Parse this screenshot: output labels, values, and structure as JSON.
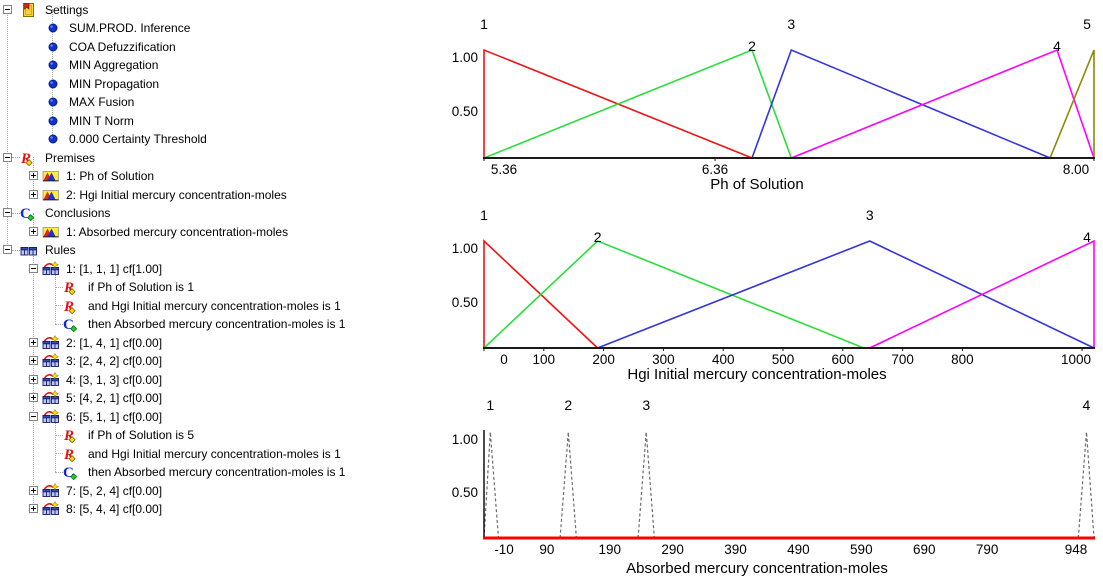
{
  "tree": {
    "items": [
      {
        "label": "Settings",
        "level": 0,
        "expander": "minus",
        "icon": "settings"
      },
      {
        "label": "SUM.PROD. Inference",
        "level": 1,
        "expander": null,
        "icon": "bullet"
      },
      {
        "label": "COA Defuzzification",
        "level": 1,
        "expander": null,
        "icon": "bullet"
      },
      {
        "label": "MIN Aggregation",
        "level": 1,
        "expander": null,
        "icon": "bullet"
      },
      {
        "label": "MIN Propagation",
        "level": 1,
        "expander": null,
        "icon": "bullet"
      },
      {
        "label": "MAX Fusion",
        "level": 1,
        "expander": null,
        "icon": "bullet"
      },
      {
        "label": "MIN T Norm",
        "level": 1,
        "expander": null,
        "icon": "bullet"
      },
      {
        "label": "0.000 Certainty Threshold",
        "level": 1,
        "expander": null,
        "icon": "bullet"
      },
      {
        "label": "Premises",
        "level": 0,
        "expander": "minus",
        "icon": "premise"
      },
      {
        "label": "1: Ph of Solution",
        "level": 1,
        "expander": "plus",
        "icon": "mf"
      },
      {
        "label": "2: Hgi Initial mercury concentration-moles",
        "level": 1,
        "expander": "plus",
        "icon": "mf"
      },
      {
        "label": "Conclusions",
        "level": 0,
        "expander": "minus",
        "icon": "conclusion"
      },
      {
        "label": "1: Absorbed mercury concentration-moles",
        "level": 1,
        "expander": "plus",
        "icon": "mf"
      },
      {
        "label": "Rules",
        "level": 0,
        "expander": "minus",
        "icon": "rules"
      },
      {
        "label": "1: [1, 1, 1] cf[1.00]",
        "level": 1,
        "expander": "minus",
        "icon": "rule"
      },
      {
        "label": "if Ph of Solution is 1",
        "level": 2,
        "expander": null,
        "icon": "premise"
      },
      {
        "label": "and Hgi Initial mercury concentration-moles is 1",
        "level": 2,
        "expander": null,
        "icon": "premise"
      },
      {
        "label": "then Absorbed mercury concentration-moles is 1",
        "level": 2,
        "expander": null,
        "icon": "conclusion"
      },
      {
        "label": "2: [1, 4, 1] cf[0.00]",
        "level": 1,
        "expander": "plus",
        "icon": "rule"
      },
      {
        "label": "3: [2, 4, 2] cf[0.00]",
        "level": 1,
        "expander": "plus",
        "icon": "rule"
      },
      {
        "label": "4: [3, 1, 3] cf[0.00]",
        "level": 1,
        "expander": "plus",
        "icon": "rule"
      },
      {
        "label": "5: [4, 2, 1] cf[0.00]",
        "level": 1,
        "expander": "plus",
        "icon": "rule"
      },
      {
        "label": "6: [5, 1, 1] cf[0.00]",
        "level": 1,
        "expander": "minus",
        "icon": "rule"
      },
      {
        "label": "if Ph of Solution is 5",
        "level": 2,
        "expander": null,
        "icon": "premise"
      },
      {
        "label": "and Hgi Initial mercury concentration-moles is 1",
        "level": 2,
        "expander": null,
        "icon": "premise"
      },
      {
        "label": "then Absorbed mercury concentration-moles is 1",
        "level": 2,
        "expander": null,
        "icon": "conclusion"
      },
      {
        "label": "7: [5, 2, 4] cf[0.00]",
        "level": 1,
        "expander": "plus",
        "icon": "rule"
      },
      {
        "label": "8: [5, 4, 4] cf[0.00]",
        "level": 1,
        "expander": "plus",
        "icon": "rule"
      }
    ]
  },
  "chart_data": [
    {
      "type": "line",
      "title": "Ph of Solution",
      "xlim": [
        5.36,
        8.0
      ],
      "ylim": [
        0,
        1
      ],
      "grid": false,
      "alternate_labels": true,
      "baseline_color": "#1a1a1a",
      "yticks": [
        {
          "v": 1.0,
          "label": "1.00"
        },
        {
          "v": 0.5,
          "label": "0.50"
        }
      ],
      "xticks": [
        {
          "v": 5.36,
          "label": "5.36"
        },
        {
          "v": 6.36,
          "label": "6.36"
        },
        {
          "v": 8.0,
          "label": "8.00"
        }
      ],
      "series": [
        {
          "name": "1",
          "color": "#f01414",
          "label_at": 5.36,
          "points": [
            [
              5.36,
              0
            ],
            [
              5.36,
              1
            ],
            [
              6.52,
              0
            ]
          ]
        },
        {
          "name": "2",
          "color": "#2cdd3c",
          "label_at": 6.52,
          "points": [
            [
              5.36,
              0
            ],
            [
              6.52,
              1
            ],
            [
              6.69,
              0
            ]
          ]
        },
        {
          "name": "3",
          "color": "#3434dd",
          "label_at": 6.69,
          "points": [
            [
              6.52,
              0
            ],
            [
              6.69,
              1
            ],
            [
              7.81,
              0
            ]
          ]
        },
        {
          "name": "4",
          "color": "#ff00ff",
          "label_at": 7.84,
          "points": [
            [
              6.69,
              0
            ],
            [
              7.84,
              1
            ],
            [
              8.0,
              0
            ]
          ]
        },
        {
          "name": "5",
          "color": "#8b8b00",
          "label_at": 8.0,
          "points": [
            [
              7.81,
              0
            ],
            [
              8.0,
              1
            ],
            [
              8.0,
              0
            ]
          ]
        }
      ]
    },
    {
      "type": "line",
      "title": "Hgi Initial mercury concentration-moles",
      "xlim": [
        0,
        1020
      ],
      "ylim": [
        0,
        1
      ],
      "grid": false,
      "alternate_labels": true,
      "baseline_color": "#1a1a1a",
      "yticks": [
        {
          "v": 1.0,
          "label": "1.00"
        },
        {
          "v": 0.5,
          "label": "0.50"
        }
      ],
      "xticks": [
        {
          "v": 0,
          "label": "0"
        },
        {
          "v": 100,
          "label": "100"
        },
        {
          "v": 200,
          "label": "200"
        },
        {
          "v": 300,
          "label": "300"
        },
        {
          "v": 400,
          "label": "400"
        },
        {
          "v": 500,
          "label": "500"
        },
        {
          "v": 600,
          "label": "600"
        },
        {
          "v": 700,
          "label": "700"
        },
        {
          "v": 800,
          "label": "800"
        },
        {
          "v": 1000,
          "label": "1000"
        }
      ],
      "series": [
        {
          "name": "1",
          "color": "#f01414",
          "label_at": 0,
          "points": [
            [
              0,
              0
            ],
            [
              0,
              1
            ],
            [
              190,
              0
            ]
          ]
        },
        {
          "name": "2",
          "color": "#2cdd3c",
          "label_at": 190,
          "points": [
            [
              0,
              0
            ],
            [
              190,
              1
            ],
            [
              635,
              0
            ]
          ]
        },
        {
          "name": "3",
          "color": "#3434dd",
          "label_at": 645,
          "points": [
            [
              190,
              0
            ],
            [
              645,
              1
            ],
            [
              1020,
              0
            ]
          ]
        },
        {
          "name": "4",
          "color": "#ff00ff",
          "label_at": 1020,
          "points": [
            [
              645,
              0
            ],
            [
              1020,
              1
            ],
            [
              1020,
              0
            ]
          ]
        }
      ]
    },
    {
      "type": "line",
      "title": "Absorbed mercury concentration-moles",
      "xlim": [
        -10,
        960
      ],
      "ylim": [
        0,
        1
      ],
      "grid": false,
      "alternate_labels": false,
      "dashed": true,
      "y_axis_line": true,
      "baseline_color": "#ff0000",
      "yticks": [
        {
          "v": 1.0,
          "label": "1.00"
        },
        {
          "v": 0.5,
          "label": "0.50"
        }
      ],
      "xticks": [
        {
          "v": -10,
          "label": "-10"
        },
        {
          "v": 90,
          "label": "90"
        },
        {
          "v": 190,
          "label": "190"
        },
        {
          "v": 290,
          "label": "290"
        },
        {
          "v": 390,
          "label": "390"
        },
        {
          "v": 490,
          "label": "490"
        },
        {
          "v": 590,
          "label": "590"
        },
        {
          "v": 690,
          "label": "690"
        },
        {
          "v": 790,
          "label": "790"
        },
        {
          "v": 948,
          "label": "948"
        }
      ],
      "series": [
        {
          "name": "1",
          "color": "#6b6b6b",
          "label_at": 0,
          "points": [
            [
              -10,
              0
            ],
            [
              0,
              1
            ],
            [
              13,
              0
            ]
          ]
        },
        {
          "name": "2",
          "color": "#6b6b6b",
          "label_at": 124,
          "points": [
            [
              111,
              0
            ],
            [
              124,
              1
            ],
            [
              137,
              0
            ]
          ]
        },
        {
          "name": "3",
          "color": "#6b6b6b",
          "label_at": 248,
          "points": [
            [
              235,
              0
            ],
            [
              248,
              1
            ],
            [
              261,
              0
            ]
          ]
        },
        {
          "name": "4",
          "color": "#6b6b6b",
          "label_at": 948,
          "points": [
            [
              935,
              0
            ],
            [
              948,
              1
            ],
            [
              960,
              0
            ]
          ]
        }
      ]
    }
  ]
}
